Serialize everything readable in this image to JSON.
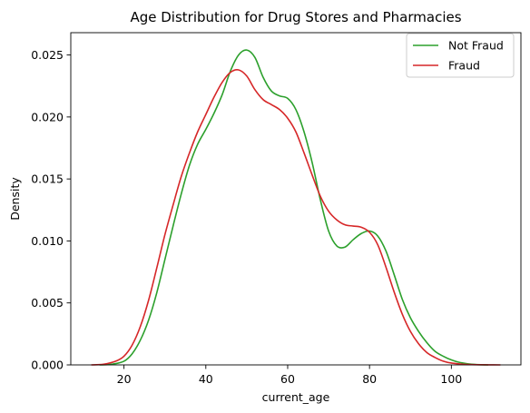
{
  "chart_data": {
    "type": "line",
    "title": "Age Distribution for Drug Stores and Pharmacies",
    "xlabel": "current_age",
    "ylabel": "Density",
    "xlim": [
      7,
      117
    ],
    "ylim": [
      0,
      0.0268
    ],
    "xticks": [
      {
        "value": 20,
        "label": "20"
      },
      {
        "value": 40,
        "label": "40"
      },
      {
        "value": 60,
        "label": "60"
      },
      {
        "value": 80,
        "label": "80"
      },
      {
        "value": 100,
        "label": "100"
      }
    ],
    "yticks": [
      {
        "value": 0.0,
        "label": "0.000"
      },
      {
        "value": 0.005,
        "label": "0.005"
      },
      {
        "value": 0.01,
        "label": "0.010"
      },
      {
        "value": 0.015,
        "label": "0.015"
      },
      {
        "value": 0.02,
        "label": "0.020"
      },
      {
        "value": 0.025,
        "label": "0.025"
      }
    ],
    "grid": false,
    "legend_position": "top-right",
    "series": [
      {
        "name": "Not Fraud",
        "color": "#2ca02c",
        "points": [
          [
            14,
            0.0
          ],
          [
            17,
            5e-05
          ],
          [
            20,
            0.0003
          ],
          [
            22,
            0.0009
          ],
          [
            24,
            0.002
          ],
          [
            26,
            0.0036
          ],
          [
            28,
            0.0058
          ],
          [
            30,
            0.0085
          ],
          [
            32,
            0.0112
          ],
          [
            34,
            0.0138
          ],
          [
            36,
            0.0161
          ],
          [
            38,
            0.0178
          ],
          [
            40,
            0.019
          ],
          [
            42,
            0.0203
          ],
          [
            44,
            0.0218
          ],
          [
            46,
            0.0237
          ],
          [
            48,
            0.025
          ],
          [
            50,
            0.0254
          ],
          [
            52,
            0.0248
          ],
          [
            54,
            0.0232
          ],
          [
            56,
            0.0221
          ],
          [
            58,
            0.0217
          ],
          [
            60,
            0.0215
          ],
          [
            62,
            0.0206
          ],
          [
            64,
            0.0188
          ],
          [
            66,
            0.0163
          ],
          [
            68,
            0.0133
          ],
          [
            70,
            0.0108
          ],
          [
            72,
            0.0096
          ],
          [
            74,
            0.0095
          ],
          [
            76,
            0.0101
          ],
          [
            78,
            0.0106
          ],
          [
            80,
            0.0108
          ],
          [
            82,
            0.0104
          ],
          [
            84,
            0.0092
          ],
          [
            86,
            0.0073
          ],
          [
            88,
            0.0053
          ],
          [
            90,
            0.0038
          ],
          [
            92,
            0.0027
          ],
          [
            94,
            0.0018
          ],
          [
            96,
            0.0011
          ],
          [
            98,
            0.0007
          ],
          [
            100,
            0.0004
          ],
          [
            102,
            0.0002
          ],
          [
            105,
            5e-05
          ],
          [
            109,
            0.0
          ]
        ]
      },
      {
        "name": "Fraud",
        "color": "#d62728",
        "points": [
          [
            12,
            0.0
          ],
          [
            15,
            5e-05
          ],
          [
            18,
            0.0003
          ],
          [
            20,
            0.0007
          ],
          [
            22,
            0.0016
          ],
          [
            24,
            0.0031
          ],
          [
            26,
            0.0052
          ],
          [
            28,
            0.0078
          ],
          [
            30,
            0.0105
          ],
          [
            32,
            0.0129
          ],
          [
            34,
            0.0152
          ],
          [
            36,
            0.0171
          ],
          [
            38,
            0.0188
          ],
          [
            40,
            0.0202
          ],
          [
            42,
            0.0216
          ],
          [
            44,
            0.0228
          ],
          [
            46,
            0.0236
          ],
          [
            48,
            0.0238
          ],
          [
            50,
            0.0233
          ],
          [
            52,
            0.0222
          ],
          [
            54,
            0.0214
          ],
          [
            56,
            0.021
          ],
          [
            58,
            0.0206
          ],
          [
            60,
            0.0199
          ],
          [
            62,
            0.0188
          ],
          [
            64,
            0.0171
          ],
          [
            66,
            0.0153
          ],
          [
            68,
            0.0136
          ],
          [
            70,
            0.0124
          ],
          [
            72,
            0.0117
          ],
          [
            74,
            0.0113
          ],
          [
            76,
            0.0112
          ],
          [
            78,
            0.0111
          ],
          [
            80,
            0.0107
          ],
          [
            82,
            0.0097
          ],
          [
            84,
            0.0079
          ],
          [
            86,
            0.0059
          ],
          [
            88,
            0.0041
          ],
          [
            90,
            0.0027
          ],
          [
            92,
            0.0017
          ],
          [
            94,
            0.001
          ],
          [
            96,
            0.0006
          ],
          [
            98,
            0.0003
          ],
          [
            100,
            0.00015
          ],
          [
            104,
            3e-05
          ],
          [
            112,
            0.0
          ]
        ]
      }
    ]
  }
}
